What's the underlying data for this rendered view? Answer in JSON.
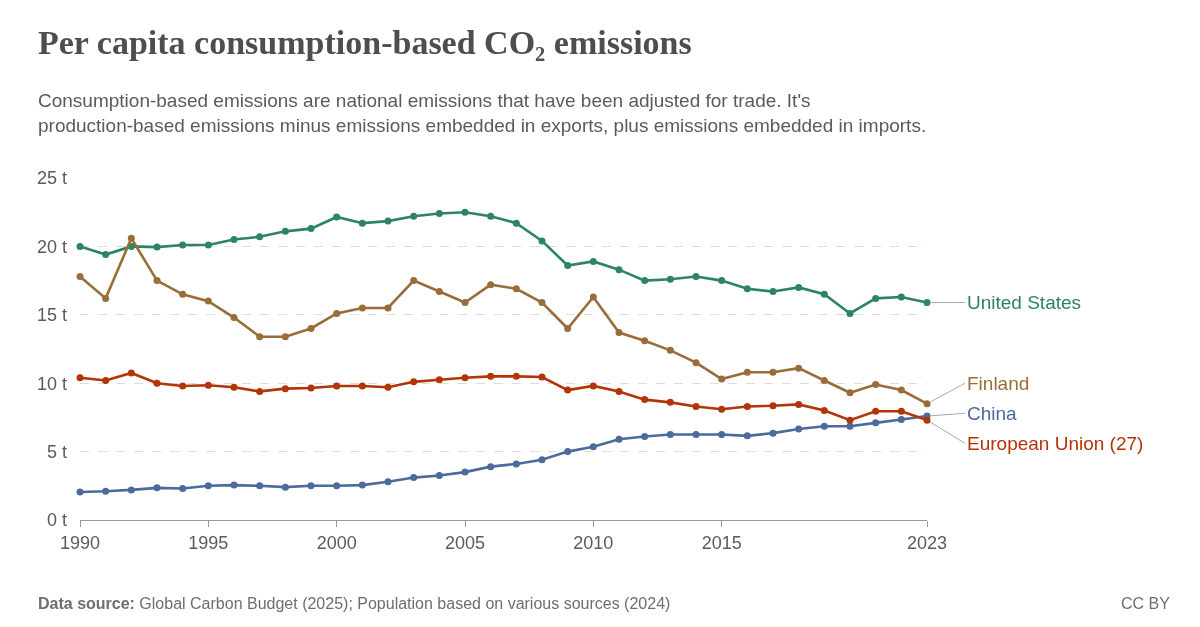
{
  "chart_data": {
    "type": "line",
    "title": "Per capita consumption-based CO₂ emissions",
    "subtitle": "Consumption-based emissions are national emissions that have been adjusted for trade. It's production-based emissions minus emissions embedded in exports, plus emissions embedded in imports.",
    "x": [
      1990,
      1991,
      1992,
      1993,
      1994,
      1995,
      1996,
      1997,
      1998,
      1999,
      2000,
      2001,
      2002,
      2003,
      2004,
      2005,
      2006,
      2007,
      2008,
      2009,
      2010,
      2011,
      2012,
      2013,
      2014,
      2015,
      2016,
      2017,
      2018,
      2019,
      2020,
      2021,
      2022,
      2023
    ],
    "series": [
      {
        "name": "United States",
        "color": "#2c8465",
        "values": [
          20.0,
          19.4,
          20.0,
          19.95,
          20.1,
          20.1,
          20.5,
          20.7,
          21.1,
          21.3,
          22.15,
          21.7,
          21.85,
          22.2,
          22.4,
          22.5,
          22.2,
          21.7,
          20.4,
          18.6,
          18.9,
          18.3,
          17.5,
          17.6,
          17.8,
          17.5,
          16.9,
          16.7,
          17.0,
          16.5,
          15.1,
          16.2,
          16.3,
          15.9
        ]
      },
      {
        "name": "Finland",
        "color": "#996d39",
        "values": [
          17.8,
          16.2,
          20.6,
          17.5,
          16.5,
          16.0,
          14.8,
          13.4,
          13.4,
          14.0,
          15.1,
          15.5,
          15.5,
          17.5,
          16.7,
          15.9,
          17.2,
          16.9,
          15.9,
          14.0,
          16.3,
          13.7,
          13.1,
          12.4,
          11.5,
          10.3,
          10.8,
          10.8,
          11.1,
          10.2,
          9.3,
          9.9,
          9.5,
          8.5
        ]
      },
      {
        "name": "China",
        "color": "#4c6a9c",
        "values": [
          2.05,
          2.1,
          2.2,
          2.35,
          2.3,
          2.5,
          2.55,
          2.5,
          2.4,
          2.5,
          2.5,
          2.55,
          2.8,
          3.1,
          3.25,
          3.5,
          3.9,
          4.1,
          4.4,
          5.0,
          5.35,
          5.9,
          6.1,
          6.25,
          6.25,
          6.25,
          6.15,
          6.35,
          6.65,
          6.85,
          6.85,
          7.1,
          7.35,
          7.6
        ]
      },
      {
        "name": "European Union (27)",
        "color": "#b13507",
        "values": [
          10.4,
          10.2,
          10.75,
          10.0,
          9.8,
          9.85,
          9.7,
          9.4,
          9.6,
          9.65,
          9.8,
          9.8,
          9.7,
          10.1,
          10.25,
          10.4,
          10.5,
          10.5,
          10.45,
          9.5,
          9.8,
          9.4,
          8.8,
          8.6,
          8.3,
          8.1,
          8.3,
          8.35,
          8.45,
          8.0,
          7.3,
          7.95,
          7.95,
          7.3
        ]
      }
    ],
    "xlim": [
      1990,
      2023
    ],
    "xticks": [
      1990,
      1995,
      2000,
      2005,
      2010,
      2015,
      2023
    ],
    "ylim": [
      0,
      25
    ],
    "yticks": [
      {
        "value": 0,
        "label": "0 t"
      },
      {
        "value": 5,
        "label": "5 t"
      },
      {
        "value": 10,
        "label": "10 t"
      },
      {
        "value": 15,
        "label": "15 t"
      },
      {
        "value": 20,
        "label": "20 t"
      },
      {
        "value": 25,
        "label": "25 t"
      }
    ],
    "grid": "y",
    "legend": false,
    "marker": "circle",
    "line_style": "solid",
    "annotations": [
      "Data source: Global Carbon Budget (2025); Population based on various sources (2024)",
      "CC BY"
    ]
  }
}
